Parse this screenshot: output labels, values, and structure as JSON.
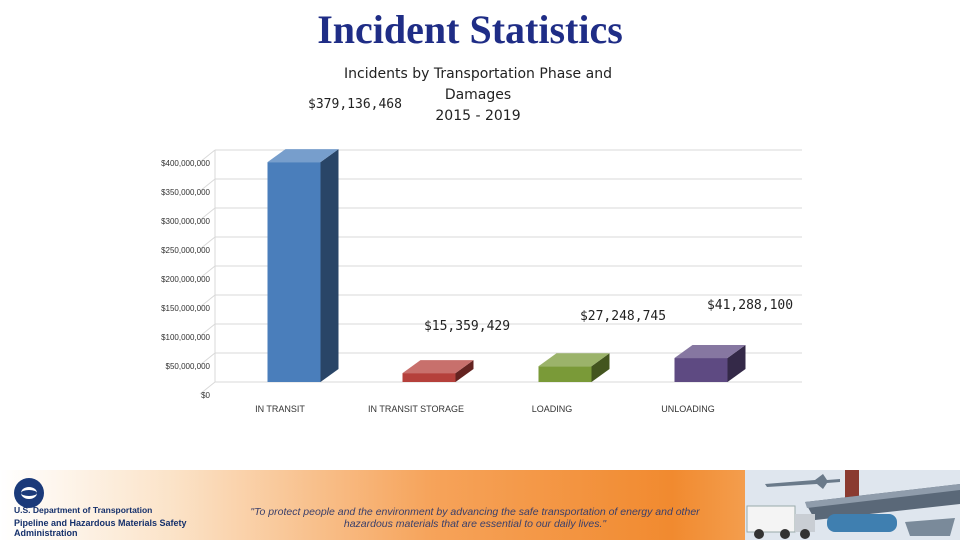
{
  "page": {
    "title": "Incident Statistics"
  },
  "chart_data": {
    "type": "bar",
    "title_lines": [
      "Incidents by Transportation Phase and",
      "Damages",
      "2015 - 2019"
    ],
    "categories": [
      "IN TRANSIT",
      "IN TRANSIT STORAGE",
      "LOADING",
      "UNLOADING"
    ],
    "values": [
      379136468,
      15359429,
      27248745,
      41288100
    ],
    "data_labels": [
      "$379,136,468",
      "$15,359,429",
      "$27,248,745",
      "$41,288,100"
    ],
    "y_ticks": [
      0,
      50000000,
      100000000,
      150000000,
      200000000,
      250000000,
      300000000,
      350000000,
      400000000
    ],
    "y_tick_labels": [
      "$0",
      "$50,000,000",
      "$100,000,000",
      "$150,000,000",
      "$200,000,000",
      "$250,000,000",
      "$300,000,000",
      "$350,000,000",
      "$400,000,000"
    ],
    "ylim": [
      0,
      400000000
    ],
    "colors": [
      "#4a7ebb",
      "#b5403b",
      "#7a9a38",
      "#5e4a82"
    ],
    "grid": true,
    "xlabel": "",
    "ylabel": "",
    "legend": false
  },
  "footer": {
    "agency_line1": "U.S. Department of Transportation",
    "agency_line2": "Pipeline and Hazardous Materials Safety Administration",
    "quote": "\"To protect people and the environment by advancing the safe transportation of energy and other hazardous materials that are essential to our daily lives.\"",
    "seal_icon": "dot-seal-icon",
    "art_icon": "transportation-collage-icon"
  }
}
